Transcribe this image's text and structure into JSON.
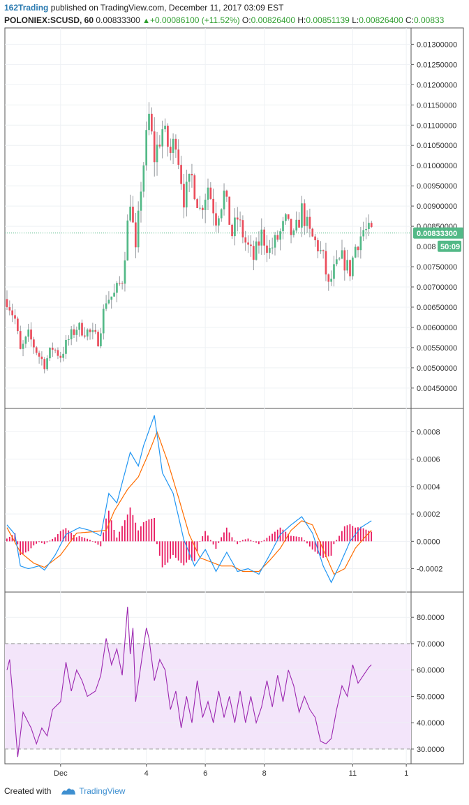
{
  "header": {
    "publisher": "162Trading",
    "published_text": "published on TradingView.com, December 11, 2017 03:09 EST",
    "symbol": "POLONIEX:SCUSD, 60",
    "last": "0.00833300",
    "change": "+0.00086100 (+11.52%)",
    "o_label": "O:",
    "o_value": "0.00826400",
    "h_label": "H:",
    "h_value": "0.00851139",
    "l_label": "L:",
    "l_value": "0.00826400",
    "c_label": "C:",
    "c_value": "0.00833"
  },
  "footer": {
    "created_with": "Created with",
    "brand": "TradingView"
  },
  "colors": {
    "up": "#53b987",
    "down": "#eb4d5c",
    "macd": "#2196f3",
    "signal": "#ff6d00",
    "hist": "#e91e63",
    "rsi": "#9c27b0",
    "rsi_band": "#f3e5fa"
  },
  "chart_data": [
    {
      "type": "candlestick",
      "pane": "price",
      "ylim": [
        0.0041,
        0.0133
      ],
      "y_ticks": [
        "0.01300000",
        "0.01250000",
        "0.01200000",
        "0.01150000",
        "0.01100000",
        "0.01050000",
        "0.01000000",
        "0.00950000",
        "0.00900000",
        "0.00850000",
        "0.00750000",
        "0.00700000",
        "0.00650000",
        "0.00600000",
        "0.00550000",
        "0.00500000",
        "0.00450000"
      ],
      "last_price": 0.008333,
      "last_price_label": "0.00833300",
      "countdown_label": "50:09",
      "countdown_tick": "0.008",
      "x_range": [
        0,
        136
      ],
      "anchors": [
        [
          0,
          0.0067
        ],
        [
          3,
          0.0062
        ],
        [
          5,
          0.0054
        ],
        [
          8,
          0.0058
        ],
        [
          12,
          0.0053
        ],
        [
          14,
          0.0051
        ],
        [
          17,
          0.0055
        ],
        [
          20,
          0.0053
        ],
        [
          23,
          0.0057
        ],
        [
          26,
          0.006
        ],
        [
          30,
          0.0059
        ],
        [
          34,
          0.0057
        ],
        [
          37,
          0.0067
        ],
        [
          40,
          0.0068
        ],
        [
          43,
          0.0072
        ],
        [
          46,
          0.0092
        ],
        [
          48,
          0.0078
        ],
        [
          50,
          0.0095
        ],
        [
          53,
          0.0112
        ],
        [
          55,
          0.0102
        ],
        [
          58,
          0.0109
        ],
        [
          61,
          0.0103
        ],
        [
          63,
          0.0107
        ],
        [
          66,
          0.0092
        ],
        [
          69,
          0.0097
        ],
        [
          72,
          0.0089
        ],
        [
          75,
          0.0095
        ],
        [
          78,
          0.0087
        ],
        [
          81,
          0.0093
        ],
        [
          84,
          0.0083
        ],
        [
          86,
          0.0087
        ],
        [
          89,
          0.0081
        ],
        [
          92,
          0.0077
        ],
        [
          95,
          0.0083
        ],
        [
          98,
          0.0079
        ],
        [
          101,
          0.0082
        ],
        [
          104,
          0.0086
        ],
        [
          107,
          0.0082
        ],
        [
          110,
          0.0089
        ],
        [
          113,
          0.0083
        ],
        [
          116,
          0.008
        ],
        [
          118,
          0.0077
        ],
        [
          120,
          0.007
        ],
        [
          122,
          0.0074
        ],
        [
          125,
          0.0077
        ],
        [
          128,
          0.0074
        ],
        [
          130,
          0.008
        ],
        [
          133,
          0.0084
        ],
        [
          136,
          0.00833
        ]
      ]
    },
    {
      "type": "line",
      "pane": "macd",
      "ylim": [
        -0.00034,
        0.00094
      ],
      "y_ticks": [
        "0.0008",
        "0.0006",
        "0.0004",
        "0.0002",
        "0.0000",
        "-0.0002"
      ],
      "series": [
        {
          "role": "macd",
          "values": [
            [
              0,
              0.00012
            ],
            [
              3,
              5e-05
            ],
            [
              5,
              -0.00018
            ],
            [
              8,
              -0.0002
            ],
            [
              12,
              -0.00018
            ],
            [
              14,
              -0.00021
            ],
            [
              18,
              -0.0001
            ],
            [
              22,
              5e-05
            ],
            [
              27,
              0.0001
            ],
            [
              31,
              8e-05
            ],
            [
              35,
              4e-05
            ],
            [
              38,
              0.00035
            ],
            [
              41,
              0.00028
            ],
            [
              46,
              0.00065
            ],
            [
              49,
              0.00055
            ],
            [
              51,
              0.0007
            ],
            [
              55,
              0.00092
            ],
            [
              58,
              0.0005
            ],
            [
              62,
              0.00035
            ],
            [
              66,
              1e-05
            ],
            [
              70,
              -0.00018
            ],
            [
              74,
              -6e-05
            ],
            [
              78,
              -0.00022
            ],
            [
              82,
              -8e-05
            ],
            [
              86,
              -0.00022
            ],
            [
              90,
              -0.0002
            ],
            [
              94,
              -0.00024
            ],
            [
              98,
              -0.0001
            ],
            [
              102,
              5e-05
            ],
            [
              106,
              0.00012
            ],
            [
              110,
              0.00018
            ],
            [
              114,
              6e-05
            ],
            [
              118,
              -0.00018
            ],
            [
              121,
              -0.0003
            ],
            [
              124,
              -0.00018
            ],
            [
              128,
              0.0
            ],
            [
              132,
              0.0001
            ],
            [
              136,
              0.00015
            ]
          ]
        },
        {
          "role": "signal",
          "values": [
            [
              0,
              0.0001
            ],
            [
              5,
              -8e-05
            ],
            [
              10,
              -0.00016
            ],
            [
              14,
              -0.00019
            ],
            [
              20,
              -0.0001
            ],
            [
              26,
              6e-05
            ],
            [
              32,
              7e-05
            ],
            [
              37,
              8e-05
            ],
            [
              40,
              0.00022
            ],
            [
              45,
              0.00038
            ],
            [
              49,
              0.00047
            ],
            [
              53,
              0.00065
            ],
            [
              56,
              0.0008
            ],
            [
              60,
              0.00058
            ],
            [
              64,
              0.00032
            ],
            [
              68,
              5e-05
            ],
            [
              72,
              -0.00012
            ],
            [
              76,
              -0.00015
            ],
            [
              80,
              -0.00018
            ],
            [
              84,
              -0.00018
            ],
            [
              88,
              -0.00022
            ],
            [
              94,
              -0.00022
            ],
            [
              98,
              -0.00014
            ],
            [
              102,
              -5e-05
            ],
            [
              106,
              8e-05
            ],
            [
              110,
              0.00015
            ],
            [
              114,
              0.00012
            ],
            [
              118,
              -6e-05
            ],
            [
              122,
              -0.00024
            ],
            [
              126,
              -0.0002
            ],
            [
              130,
              -5e-05
            ],
            [
              134,
              4e-05
            ],
            [
              136,
              8e-05
            ]
          ]
        }
      ]
    },
    {
      "type": "line",
      "pane": "rsi",
      "ylim": [
        26,
        88
      ],
      "y_ticks": [
        "80.0000",
        "70.0000",
        "60.0000",
        "50.0000",
        "40.0000",
        "30.0000"
      ],
      "bands": [
        30,
        70
      ],
      "values": [
        [
          0,
          60
        ],
        [
          1,
          64
        ],
        [
          3,
          40
        ],
        [
          4,
          27
        ],
        [
          6,
          44
        ],
        [
          9,
          38
        ],
        [
          11,
          32
        ],
        [
          13,
          38
        ],
        [
          15,
          35
        ],
        [
          17,
          45
        ],
        [
          20,
          48
        ],
        [
          22,
          63
        ],
        [
          24,
          52
        ],
        [
          26,
          60
        ],
        [
          28,
          56
        ],
        [
          30,
          50
        ],
        [
          33,
          52
        ],
        [
          35,
          58
        ],
        [
          37,
          72
        ],
        [
          39,
          62
        ],
        [
          41,
          68
        ],
        [
          43,
          58
        ],
        [
          45,
          84
        ],
        [
          46,
          66
        ],
        [
          47,
          76
        ],
        [
          48,
          48
        ],
        [
          50,
          62
        ],
        [
          52,
          76
        ],
        [
          53,
          72
        ],
        [
          55,
          56
        ],
        [
          57,
          64
        ],
        [
          59,
          60
        ],
        [
          61,
          45
        ],
        [
          63,
          52
        ],
        [
          65,
          38
        ],
        [
          67,
          50
        ],
        [
          69,
          40
        ],
        [
          71,
          56
        ],
        [
          73,
          42
        ],
        [
          75,
          48
        ],
        [
          77,
          40
        ],
        [
          79,
          52
        ],
        [
          81,
          42
        ],
        [
          83,
          50
        ],
        [
          85,
          40
        ],
        [
          87,
          52
        ],
        [
          89,
          40
        ],
        [
          91,
          50
        ],
        [
          93,
          40
        ],
        [
          95,
          46
        ],
        [
          97,
          56
        ],
        [
          99,
          46
        ],
        [
          101,
          58
        ],
        [
          103,
          48
        ],
        [
          105,
          60
        ],
        [
          107,
          54
        ],
        [
          109,
          44
        ],
        [
          111,
          50
        ],
        [
          113,
          45
        ],
        [
          115,
          42
        ],
        [
          117,
          33
        ],
        [
          119,
          32
        ],
        [
          121,
          34
        ],
        [
          123,
          45
        ],
        [
          125,
          54
        ],
        [
          127,
          50
        ],
        [
          129,
          62
        ],
        [
          131,
          55
        ],
        [
          133,
          58
        ],
        [
          135,
          61
        ],
        [
          136,
          62
        ]
      ]
    }
  ],
  "x_axis": {
    "ticks": [
      {
        "x": 20,
        "label": "Dec"
      },
      {
        "x": 52,
        "label": "4"
      },
      {
        "x": 74,
        "label": "6"
      },
      {
        "x": 96,
        "label": "8"
      },
      {
        "x": 129,
        "label": "11"
      },
      {
        "x": 149,
        "label": "1"
      }
    ]
  }
}
